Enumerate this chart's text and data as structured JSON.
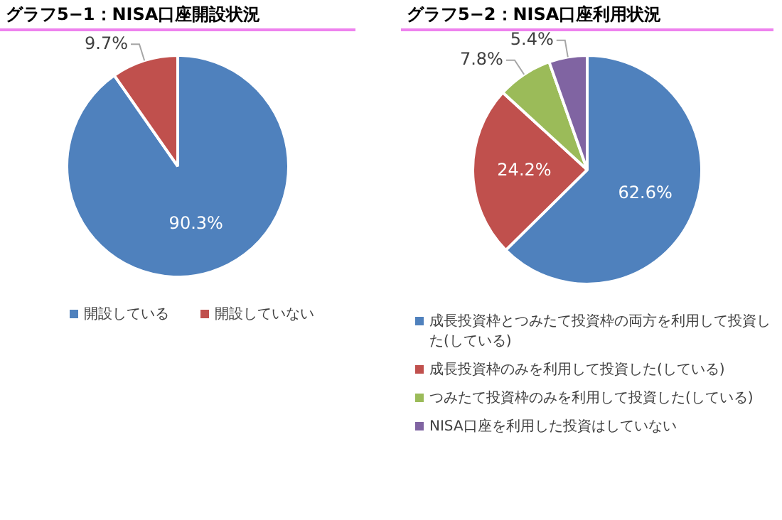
{
  "chart_data": [
    {
      "type": "pie",
      "title": "グラフ5−1：NISA口座開設状況",
      "categories": [
        "開設している",
        "開設していない"
      ],
      "values": [
        90.3,
        9.7
      ],
      "colors": [
        "#4f81bd",
        "#c0504d"
      ],
      "value_labels": [
        "90.3%",
        "9.7%"
      ],
      "legend": "bottom"
    },
    {
      "type": "pie",
      "title": "グラフ5−2：NISA口座利用状況",
      "categories": [
        "成長投資枠とつみたて投資枠の両方を利用して投資した(している)",
        "成長投資枠のみを利用して投資した(している)",
        "つみたて投資枠のみを利用して投資した(している)",
        "NISA口座を利用した投資はしていない"
      ],
      "values": [
        62.6,
        24.2,
        7.8,
        5.4
      ],
      "colors": [
        "#4f81bd",
        "#c0504d",
        "#9bbb59",
        "#8064a2"
      ],
      "value_labels": [
        "62.6%",
        "24.2%",
        "7.8%",
        "5.4%"
      ],
      "legend": "bottom"
    }
  ]
}
